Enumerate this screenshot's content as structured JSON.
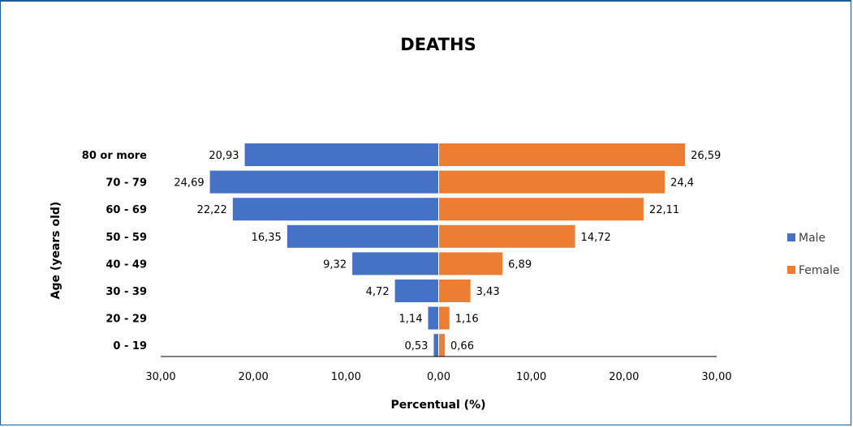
{
  "chart_data": {
    "type": "bar",
    "orientation": "horizontal",
    "title": "DEATHS",
    "xlabel": "Percentual (%)",
    "ylabel": "Age (years old)",
    "categories": [
      "80 or more",
      "70 - 79",
      "60 - 69",
      "50 - 59",
      "40 - 49",
      "30 - 39",
      "20 - 29",
      "0 - 19"
    ],
    "series": [
      {
        "name": "Male",
        "values": [
          20.93,
          24.69,
          22.22,
          16.35,
          9.32,
          4.72,
          1.14,
          0.53
        ],
        "labels": [
          "20,93",
          "24,69",
          "22,22",
          "16,35",
          "9,32",
          "4,72",
          "1,14",
          "0,53"
        ],
        "color": "#4472c4",
        "direction": "left"
      },
      {
        "name": "Female",
        "values": [
          26.59,
          24.4,
          22.11,
          14.72,
          6.89,
          3.43,
          1.16,
          0.66
        ],
        "labels": [
          "26,59",
          "24,4",
          "22,11",
          "14,72",
          "6,89",
          "3,43",
          "1,16",
          "0,66"
        ],
        "color": "#ed7d31",
        "direction": "right"
      }
    ],
    "xlim": [
      -30,
      30
    ],
    "x_ticks": [
      -30,
      -20,
      -10,
      0,
      10,
      20,
      30
    ],
    "x_tick_labels": [
      "30,00",
      "20,00",
      "10,00",
      "0,00",
      "10,00",
      "20,00",
      "30,00"
    ],
    "legend_position": "right",
    "grid": false
  }
}
